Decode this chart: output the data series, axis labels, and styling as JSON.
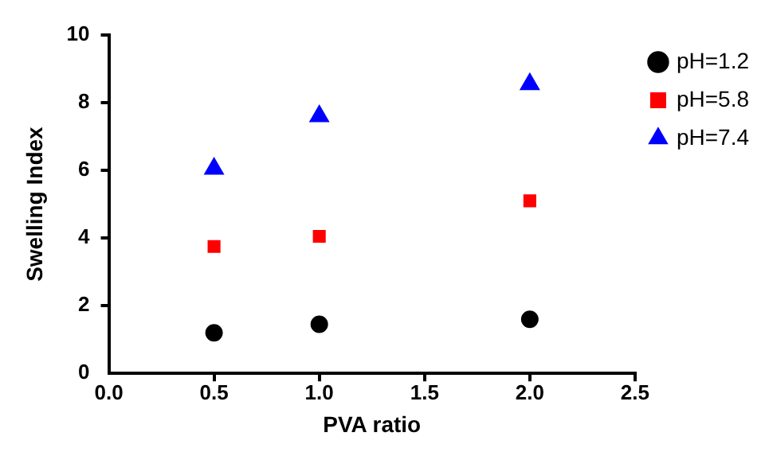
{
  "chart_data": {
    "type": "scatter",
    "xlabel": "PVA ratio",
    "ylabel": "Swelling Index",
    "xlim": [
      0,
      2.5
    ],
    "xticks": [
      {
        "value": 0,
        "label": "0.0"
      },
      0.5,
      {
        "value": 1,
        "label": "1.0"
      },
      1.5,
      {
        "value": 2,
        "label": "2.0"
      },
      2.5
    ],
    "ylim": [
      0,
      10
    ],
    "yticks": [
      0,
      2,
      4,
      6,
      8,
      10
    ],
    "grid": false,
    "legend": "top right",
    "x": [
      0.5,
      1,
      2
    ],
    "series": [
      {
        "name": "pH=1.2",
        "color": "#000000",
        "marker": "circle",
        "values": [
          1.2,
          1.45,
          1.6
        ]
      },
      {
        "name": "pH=5.8",
        "color": "#ff0000",
        "marker": "square",
        "values": [
          3.75,
          4.05,
          5.1
        ]
      },
      {
        "name": "pH=7.4",
        "color": "#0000ff",
        "marker": "triangle",
        "values": [
          6.05,
          7.6,
          8.55
        ]
      }
    ]
  }
}
